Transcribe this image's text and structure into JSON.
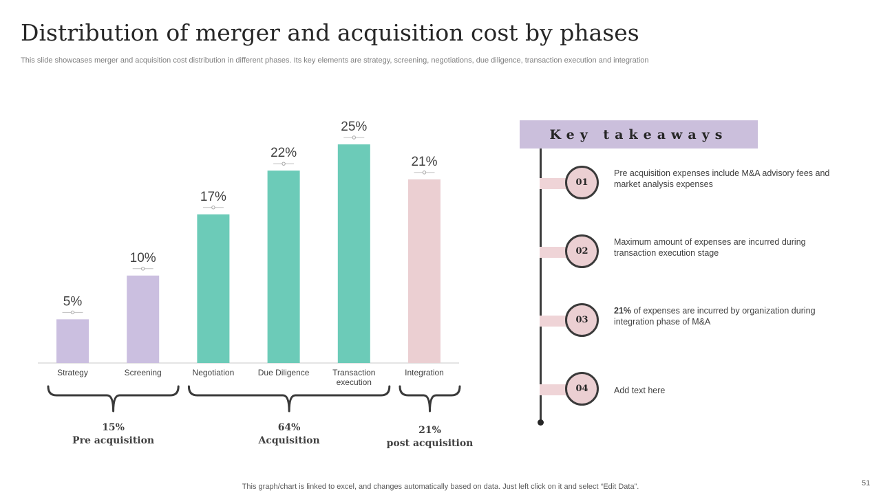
{
  "title": "Distribution of merger and acquisition cost by phases",
  "subtitle": "This slide showcases merger and acquisition cost distribution in different phases. Its key elements are strategy, screening, negotiations, due diligence, transaction execution and integration",
  "chart_data": {
    "type": "bar",
    "categories": [
      "Strategy",
      "Screening",
      "Negotiation",
      "Due Diligence",
      "Transaction execution",
      "Integration"
    ],
    "category_lines": [
      [
        "Strategy"
      ],
      [
        "Screening"
      ],
      [
        "Negotiation"
      ],
      [
        "Due Diligence"
      ],
      [
        "Transaction",
        "execution"
      ],
      [
        "Integration"
      ]
    ],
    "values": [
      5,
      10,
      17,
      22,
      25,
      21
    ],
    "value_labels": [
      "5%",
      "10%",
      "17%",
      "22%",
      "25%",
      "21%"
    ],
    "bar_colors": [
      "#cbbfe0",
      "#cbbfe0",
      "#6ccbb8",
      "#6ccbb8",
      "#6ccbb8",
      "#ebcfd2"
    ],
    "ylim": [
      0,
      25
    ],
    "grid": false,
    "groups": [
      {
        "percent": "15%",
        "label": "Pre acquisition",
        "start": 0,
        "end": 1
      },
      {
        "percent": "64%",
        "label": "Acquisition",
        "start": 2,
        "end": 4
      },
      {
        "percent": "21%",
        "label": "post acquisition",
        "start": 5,
        "end": 5
      }
    ]
  },
  "takeaways": {
    "header": "Key takeaways",
    "items": [
      {
        "number": "01",
        "text": "Pre acquisition expenses include M&A advisory fees and market analysis expenses"
      },
      {
        "number": "02",
        "text": "Maximum amount of expenses are incurred during transaction execution stage"
      },
      {
        "number": "03",
        "highlight": "21%",
        "text": " of expenses are incurred by organization during integration phase of M&A"
      },
      {
        "number": "04",
        "text": "Add text here"
      }
    ]
  },
  "footer_note": "This graph/chart is linked to excel,  and changes automatically based on data. Just left click on it and select “Edit Data”.",
  "page_number": "51"
}
